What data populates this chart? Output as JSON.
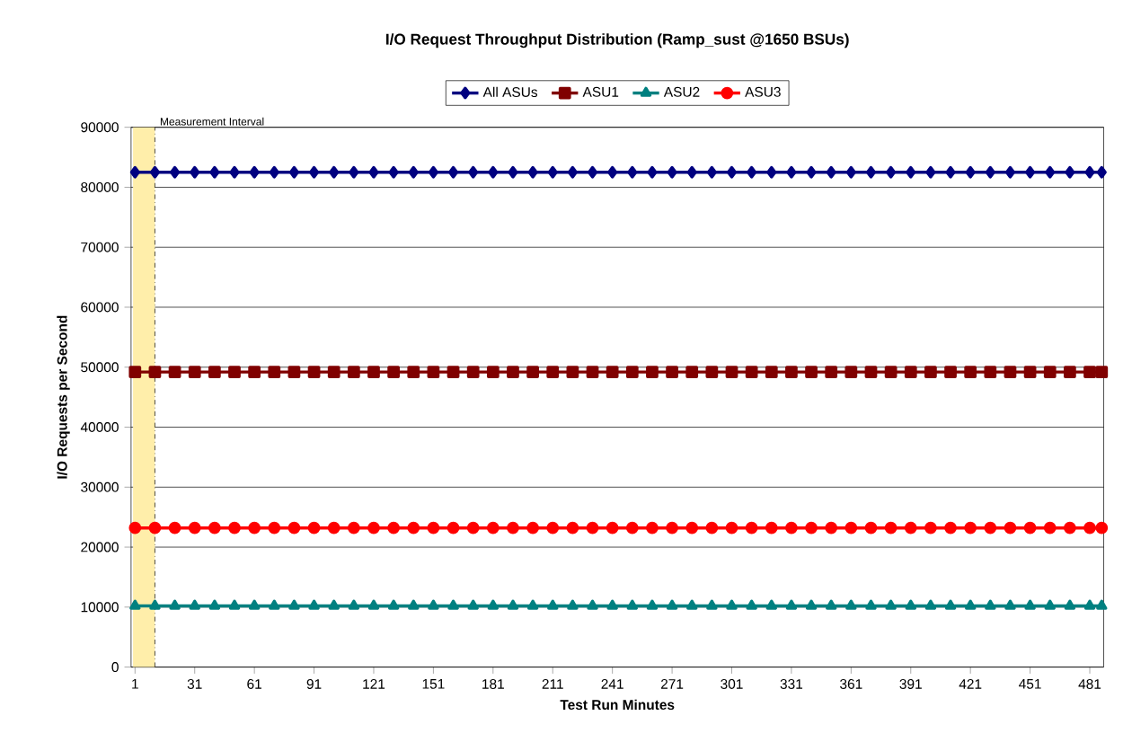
{
  "chart_data": {
    "type": "line",
    "title": "I/O Request Throughput Distribution (Ramp_sust @1650 BSUs)",
    "xlabel": "Test Run Minutes",
    "ylabel": "I/O Requests per Second",
    "x": [
      1,
      11,
      21,
      31,
      41,
      51,
      61,
      71,
      81,
      91,
      101,
      111,
      121,
      131,
      141,
      151,
      161,
      171,
      181,
      191,
      201,
      211,
      221,
      231,
      241,
      251,
      261,
      271,
      281,
      291,
      301,
      311,
      321,
      331,
      341,
      351,
      361,
      371,
      381,
      391,
      401,
      411,
      421,
      431,
      441,
      451,
      461,
      471,
      481,
      487
    ],
    "series": [
      {
        "name": "All ASUs",
        "color": "#000080",
        "marker": "diamond",
        "values": [
          82500,
          82500,
          82500,
          82500,
          82500,
          82500,
          82500,
          82500,
          82500,
          82500,
          82500,
          82500,
          82500,
          82500,
          82500,
          82500,
          82500,
          82500,
          82500,
          82500,
          82500,
          82500,
          82500,
          82500,
          82500,
          82500,
          82500,
          82500,
          82500,
          82500,
          82500,
          82500,
          82500,
          82500,
          82500,
          82500,
          82500,
          82500,
          82500,
          82500,
          82500,
          82500,
          82500,
          82500,
          82500,
          82500,
          82500,
          82500,
          82500,
          82500
        ]
      },
      {
        "name": "ASU1",
        "color": "#800000",
        "marker": "square",
        "values": [
          49200,
          49200,
          49200,
          49200,
          49200,
          49200,
          49200,
          49200,
          49200,
          49200,
          49200,
          49200,
          49200,
          49200,
          49200,
          49200,
          49200,
          49200,
          49200,
          49200,
          49200,
          49200,
          49200,
          49200,
          49200,
          49200,
          49200,
          49200,
          49200,
          49200,
          49200,
          49200,
          49200,
          49200,
          49200,
          49200,
          49200,
          49200,
          49200,
          49200,
          49200,
          49200,
          49200,
          49200,
          49200,
          49200,
          49200,
          49200,
          49200,
          49200
        ]
      },
      {
        "name": "ASU2",
        "color": "#008080",
        "marker": "triangle",
        "values": [
          10200,
          10200,
          10200,
          10200,
          10200,
          10200,
          10200,
          10200,
          10200,
          10200,
          10200,
          10200,
          10200,
          10200,
          10200,
          10200,
          10200,
          10200,
          10200,
          10200,
          10200,
          10200,
          10200,
          10200,
          10200,
          10200,
          10200,
          10200,
          10200,
          10200,
          10200,
          10200,
          10200,
          10200,
          10200,
          10200,
          10200,
          10200,
          10200,
          10200,
          10200,
          10200,
          10200,
          10200,
          10200,
          10200,
          10200,
          10200,
          10200,
          10200
        ]
      },
      {
        "name": "ASU3",
        "color": "#ff0000",
        "marker": "circle",
        "values": [
          23200,
          23200,
          23200,
          23200,
          23200,
          23200,
          23200,
          23200,
          23200,
          23200,
          23200,
          23200,
          23200,
          23200,
          23200,
          23200,
          23200,
          23200,
          23200,
          23200,
          23200,
          23200,
          23200,
          23200,
          23200,
          23200,
          23200,
          23200,
          23200,
          23200,
          23200,
          23200,
          23200,
          23200,
          23200,
          23200,
          23200,
          23200,
          23200,
          23200,
          23200,
          23200,
          23200,
          23200,
          23200,
          23200,
          23200,
          23200,
          23200,
          23200
        ]
      }
    ],
    "xlim": [
      -1,
      488
    ],
    "xticks": [
      1,
      31,
      61,
      91,
      121,
      151,
      181,
      211,
      241,
      271,
      301,
      331,
      361,
      391,
      421,
      451,
      481
    ],
    "ylim": [
      0,
      90000
    ],
    "yticks": [
      0,
      10000,
      20000,
      30000,
      40000,
      50000,
      60000,
      70000,
      80000,
      90000
    ],
    "grid": "y",
    "legend": "top",
    "line_style": "solid",
    "bands": [
      {
        "axis": "x",
        "from": 0,
        "to": 11,
        "color": "#ffeeaa"
      }
    ],
    "ref_lines": [
      {
        "axis": "x",
        "value": 11,
        "label": "Measurement Interval",
        "line_style": "dashed",
        "color": "#000000"
      }
    ]
  }
}
